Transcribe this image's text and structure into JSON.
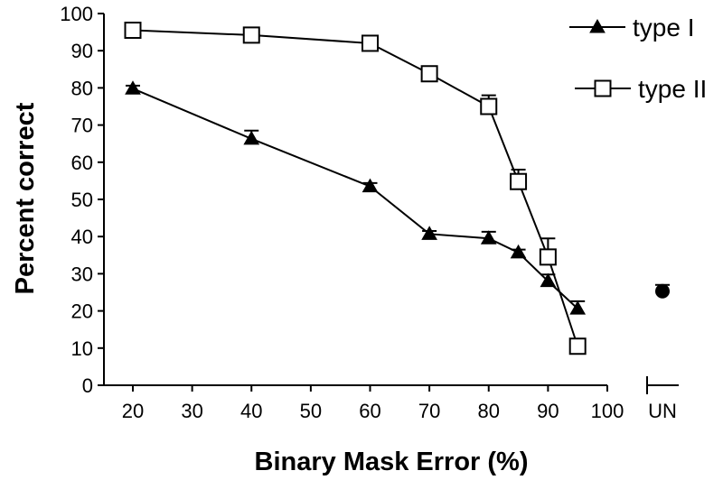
{
  "chart_data": {
    "type": "line",
    "xlabel": "Binary Mask Error (%)",
    "ylabel": "Percent correct",
    "ylim": [
      0,
      100
    ],
    "yticks": [
      0,
      10,
      20,
      30,
      40,
      50,
      60,
      70,
      80,
      90,
      100
    ],
    "xlim": [
      15,
      100
    ],
    "xticks": [
      20,
      30,
      40,
      50,
      60,
      70,
      80,
      90,
      100
    ],
    "extra_category": {
      "label": "UN",
      "value": 25.3,
      "error": 1.7
    },
    "legend_position": "top-right",
    "series": [
      {
        "name": "type I",
        "marker": "filled-triangle",
        "x": [
          20,
          40,
          60,
          70,
          80,
          85,
          90,
          95
        ],
        "y": [
          79.8,
          66.3,
          53.5,
          40.7,
          39.5,
          35.7,
          28.0,
          20.6
        ],
        "error": [
          0.8,
          2.2,
          0.9,
          0.8,
          1.8,
          0.8,
          1.8,
          2.0
        ]
      },
      {
        "name": "type II",
        "marker": "open-square",
        "x": [
          20,
          40,
          60,
          70,
          80,
          85,
          90,
          95
        ],
        "y": [
          95.5,
          94.2,
          92.0,
          83.8,
          75.0,
          54.8,
          34.5,
          10.5
        ],
        "error": [
          0.7,
          0.9,
          0.9,
          0.9,
          3.0,
          3.2,
          5.0,
          0.6
        ]
      }
    ]
  }
}
